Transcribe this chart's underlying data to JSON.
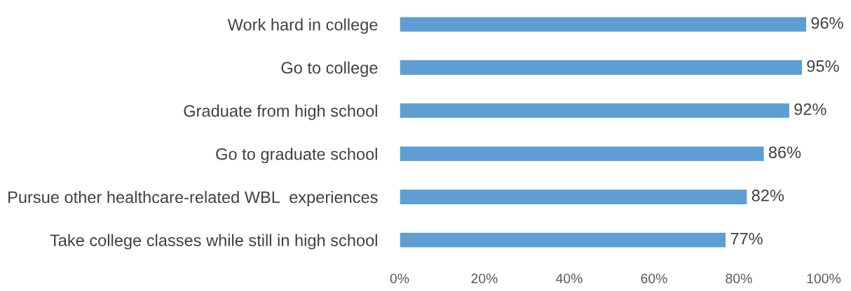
{
  "chart_data": {
    "type": "bar",
    "orientation": "horizontal",
    "categories": [
      "Work hard in college",
      "Go to college",
      "Graduate from high school",
      "Go to graduate school",
      "Pursue other healthcare-related WBL  experiences",
      "Take college classes while still in high school"
    ],
    "values": [
      96,
      95,
      92,
      86,
      82,
      77
    ],
    "color": "#5f9ed2",
    "value_labels": [
      "96%",
      "95%",
      "92%",
      "86%",
      "82%",
      "77%"
    ],
    "xlim": [
      0,
      100
    ],
    "xticks": [
      {
        "value": 0,
        "label": "0%"
      },
      {
        "value": 20,
        "label": "20%"
      },
      {
        "value": 40,
        "label": "40%"
      },
      {
        "value": 60,
        "label": "60%"
      },
      {
        "value": 80,
        "label": "80%"
      },
      {
        "value": 100,
        "label": "100%"
      }
    ],
    "grid": false,
    "legend": false
  }
}
